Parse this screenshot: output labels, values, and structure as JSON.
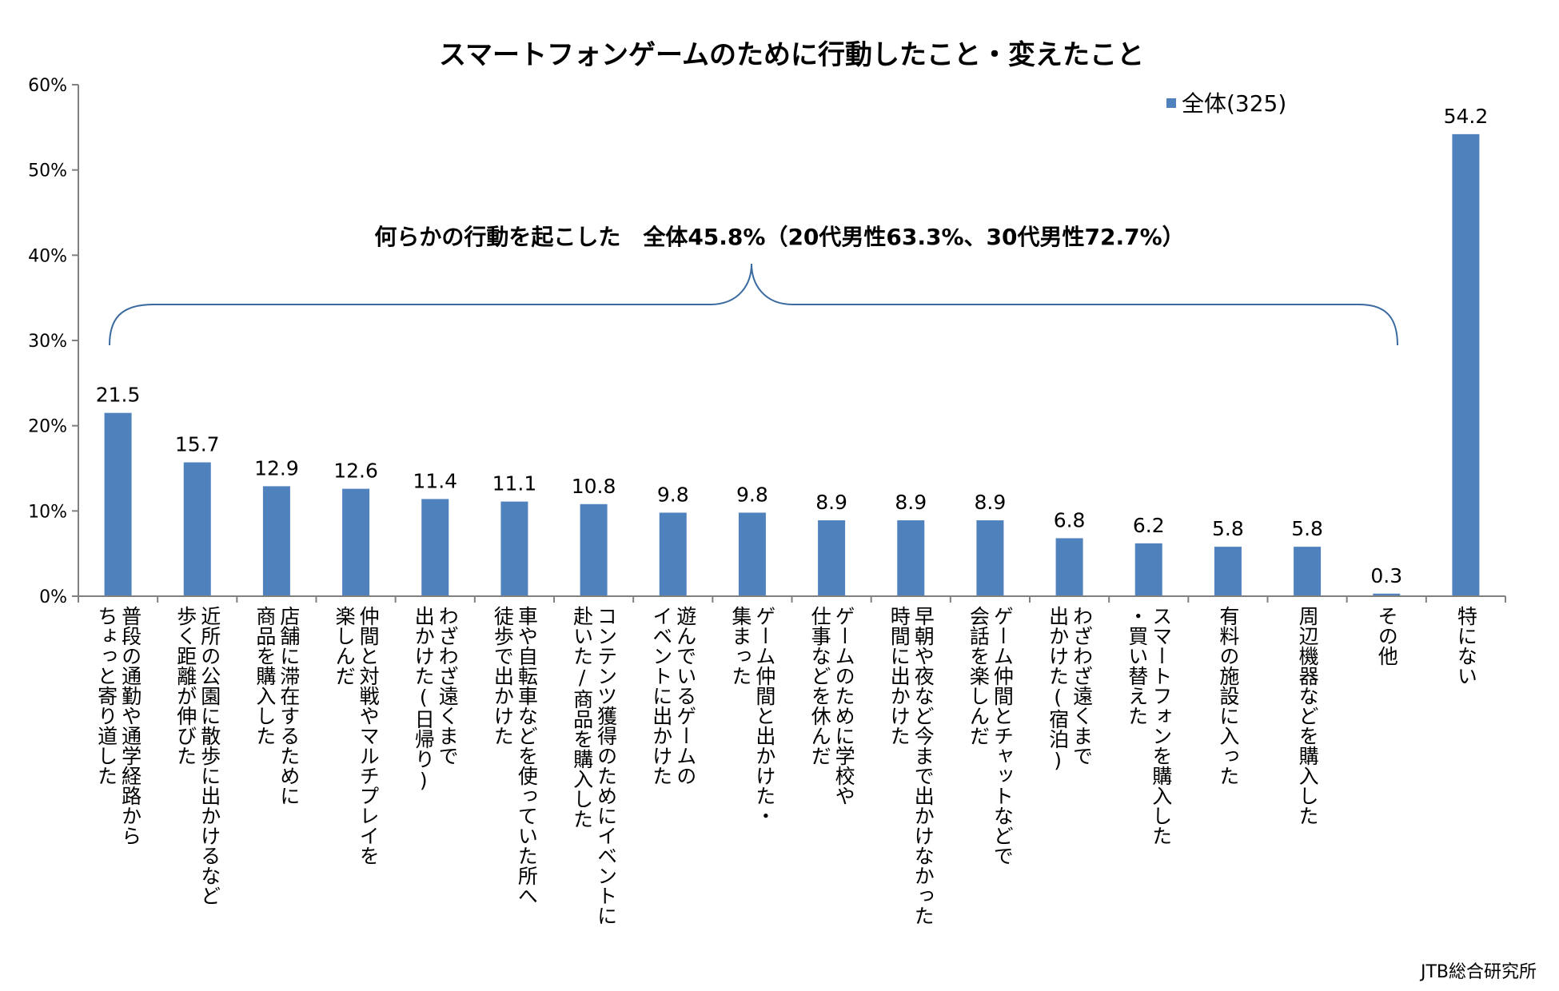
{
  "chart_data": {
    "type": "bar",
    "title": "スマートフォンゲームのために行動したこと・変えたこと",
    "legend": "全体(325)",
    "legend_position": "top-right",
    "ylim": [
      0,
      60
    ],
    "yticks": [
      "0%",
      "10%",
      "20%",
      "30%",
      "40%",
      "50%",
      "60%"
    ],
    "categories": [
      "普段の通勤や通学経路から\nちょっと寄り道した",
      "近所の公園に散歩に出かけるなど\n歩く距離が伸びた",
      "店舗に滞在するために\n商品を購入した",
      "仲間と対戦やマルチプレイを\n楽しんだ",
      "わざわざ遠くまで\n出かけた(日帰り)",
      "車や自転車などを使っていた所へ\n徒歩で出かけた",
      "コンテンツ獲得のためにイベントに\n赴いた/商品を購入した",
      "遊んでいるゲームの\nイベントに出かけた",
      "ゲーム仲間と出かけた・\n集まった",
      "ゲームのために学校や\n仕事などを休んだ",
      "早朝や夜など今まで出かけなかった\n時間に出かけた",
      "ゲーム仲間とチャットなどで\n会話を楽しんだ",
      "わざわざ遠くまで\n出かけた(宿泊)",
      "スマートフォンを購入した\n・買い替えた",
      "有料の施設に入った",
      "周辺機器などを購入した",
      "その他",
      "特にない"
    ],
    "values": [
      21.5,
      15.7,
      12.9,
      12.6,
      11.4,
      11.1,
      10.8,
      9.8,
      9.8,
      8.9,
      8.9,
      8.9,
      6.8,
      6.2,
      5.8,
      5.8,
      0.3,
      54.2
    ],
    "value_labels": [
      "21.5",
      "15.7",
      "12.9",
      "12.6",
      "11.4",
      "11.1",
      "10.8",
      "9.8",
      "9.8",
      "8.9",
      "8.9",
      "8.9",
      "6.8",
      "6.2",
      "5.8",
      "5.8",
      "0.3",
      "54.2"
    ],
    "annotation": "何らかの行動を起こした　全体45.8%（20代男性63.3%、30代男性72.7%）",
    "bar_color": "#4f81bd"
  },
  "source": "JTB総合研究所"
}
